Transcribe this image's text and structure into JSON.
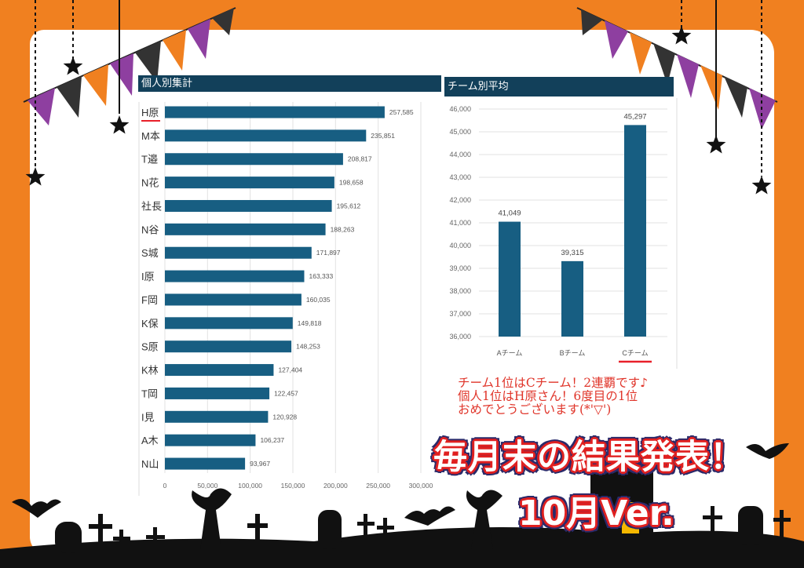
{
  "colors": {
    "frame": "#F08020",
    "bar": "#175E82",
    "header": "#12405a",
    "highlight": "#e8202a",
    "message": "#e0352a"
  },
  "chart_data": [
    {
      "type": "bar",
      "orientation": "horizontal",
      "title": "個人別集計",
      "categories": [
        "H原",
        "M本",
        "T邉",
        "N花",
        "社長",
        "N谷",
        "S城",
        "I原",
        "F岡",
        "K保",
        "S原",
        "K林",
        "T岡",
        "I見",
        "A木",
        "N山"
      ],
      "values": [
        257585,
        235851,
        208817,
        198658,
        195612,
        188263,
        171897,
        163333,
        160035,
        149818,
        148253,
        127404,
        122457,
        120928,
        106237,
        93967
      ],
      "data_labels": [
        "257,585",
        "235,851",
        "208,817",
        "198,658",
        "195,612",
        "188,263",
        "171,897",
        "163,333",
        "160,035",
        "149,818",
        "148,253",
        "127,404",
        "122,457",
        "120,928",
        "106,237",
        "93,967"
      ],
      "xlim": [
        0,
        300000
      ],
      "ticks": [
        "0",
        "50,000",
        "100,000",
        "150,000",
        "200,000",
        "250,000",
        "300,000"
      ],
      "grid": true,
      "highlighted_category": "H原"
    },
    {
      "type": "bar",
      "title": "チーム別平均",
      "categories": [
        "Aチーム",
        "Bチーム",
        "Cチーム"
      ],
      "values": [
        41049,
        39315,
        45297
      ],
      "data_labels": [
        "41,049",
        "39,315",
        "45,297"
      ],
      "ylim": [
        36000,
        46000
      ],
      "ticks": [
        "36,000",
        "37,000",
        "38,000",
        "39,000",
        "40,000",
        "41,000",
        "42,000",
        "43,000",
        "44,000",
        "45,000",
        "46,000"
      ],
      "grid": true,
      "highlighted_category": "Cチーム"
    }
  ],
  "message": {
    "lines": [
      "チーム1位はCチーム！2連覇です♪",
      "個人1位はH原さん！6度目の1位",
      "おめでとうございます(*'▽')"
    ]
  },
  "title": {
    "line1": "毎月末の結果発表！",
    "line2": "10月Ver."
  }
}
